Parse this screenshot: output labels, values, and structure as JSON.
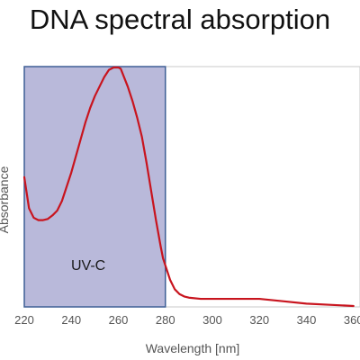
{
  "chart_data": {
    "type": "line",
    "title": "DNA spectral absorption",
    "xlabel": "Wavelength [nm]",
    "ylabel": "Absorbance",
    "xlim": [
      220,
      360
    ],
    "ylim": [
      0,
      1.0
    ],
    "x_ticks": [
      "220",
      "240",
      "260",
      "280",
      "300",
      "320",
      "340",
      "360"
    ],
    "grid": false,
    "legend": "none",
    "series": [
      {
        "color": "#c8141e",
        "x": [
          220,
          222,
          224,
          226,
          228,
          230,
          232,
          234,
          236,
          238,
          240,
          242,
          244,
          246,
          248,
          250,
          252,
          254,
          256,
          258,
          259,
          260,
          261,
          262,
          264,
          266,
          268,
          270,
          272,
          274,
          276,
          278,
          279,
          280,
          282,
          284,
          286,
          288,
          290,
          295,
          300,
          310,
          320,
          330,
          340,
          350,
          360
        ],
        "y": [
          0.54,
          0.41,
          0.37,
          0.36,
          0.36,
          0.365,
          0.38,
          0.4,
          0.44,
          0.5,
          0.56,
          0.63,
          0.7,
          0.77,
          0.83,
          0.88,
          0.92,
          0.96,
          0.99,
          1.0,
          1.0,
          1.0,
          0.995,
          0.97,
          0.92,
          0.86,
          0.79,
          0.71,
          0.6,
          0.48,
          0.36,
          0.25,
          0.2,
          0.17,
          0.11,
          0.07,
          0.05,
          0.04,
          0.035,
          0.03,
          0.03,
          0.03,
          0.03,
          0.02,
          0.01,
          0.005,
          0.0
        ]
      }
    ],
    "regions": [
      {
        "label": "UV-C",
        "x_start": 220,
        "x_end": 280,
        "color": "#b9b9da",
        "border": "#3e5f95"
      }
    ]
  }
}
